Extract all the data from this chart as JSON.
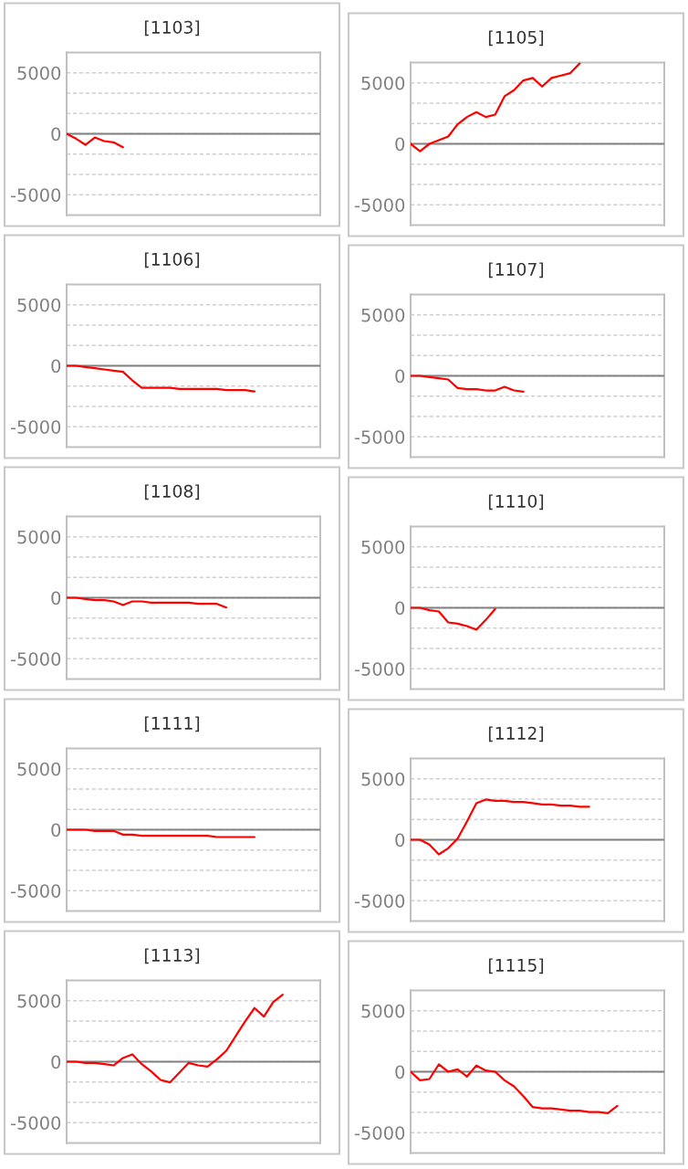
{
  "chart_data": [
    {
      "type": "line",
      "title": "[1103]",
      "categories": [
        null,
        null,
        null,
        null,
        null,
        null,
        null,
        null,
        null,
        null,
        null,
        null,
        null,
        null,
        null,
        null,
        null,
        null,
        null,
        null,
        null,
        null,
        null,
        null,
        null,
        null,
        null,
        null
      ],
      "values": [
        0,
        -400,
        -900,
        -300,
        -600,
        -700,
        -1100,
        null,
        null,
        null,
        null,
        null,
        null,
        null,
        null,
        null,
        null,
        null,
        null,
        null,
        null,
        null,
        null,
        null,
        null,
        null,
        null,
        null
      ],
      "color": "#ff0000",
      "ylim": [
        -6666.67,
        6666.67
      ],
      "yticks": [
        5000,
        {
          "value": 3333.33,
          "label": null
        },
        {
          "value": 1666.67,
          "label": null
        },
        0,
        {
          "value": -1666.67,
          "label": null
        },
        {
          "value": -3333.33,
          "label": null
        },
        -5000
      ],
      "grid": "y",
      "ref_lines": [
        {
          "axis": "y",
          "value": 0,
          "color": "#808080"
        }
      ],
      "tick_labels": "y"
    },
    {
      "type": "line",
      "title": "[1105]",
      "categories": [
        null,
        null,
        null,
        null,
        null,
        null,
        null,
        null,
        null,
        null,
        null,
        null,
        null,
        null,
        null,
        null,
        null,
        null,
        null,
        null,
        null,
        null,
        null,
        null,
        null,
        null,
        null,
        null
      ],
      "values": [
        0,
        -600,
        0,
        300,
        600,
        1600,
        2200,
        2600,
        2200,
        2400,
        3900,
        4400,
        5200,
        5400,
        4700,
        5400,
        5600,
        5800,
        6600,
        null,
        null,
        null,
        null,
        null,
        null,
        null,
        null,
        null
      ],
      "color": "#ff0000",
      "ylim": [
        -6666.67,
        6666.67
      ],
      "yticks": [
        5000,
        {
          "value": 3333.33,
          "label": null
        },
        {
          "value": 1666.67,
          "label": null
        },
        0,
        {
          "value": -1666.67,
          "label": null
        },
        {
          "value": -3333.33,
          "label": null
        },
        -5000
      ],
      "grid": "y",
      "ref_lines": [
        {
          "axis": "y",
          "value": 0,
          "color": "#808080"
        }
      ],
      "tick_labels": "y"
    },
    {
      "type": "line",
      "title": "[1106]",
      "categories": [
        null,
        null,
        null,
        null,
        null,
        null,
        null,
        null,
        null,
        null,
        null,
        null,
        null,
        null,
        null,
        null,
        null,
        null,
        null,
        null,
        null,
        null,
        null,
        null,
        null,
        null,
        null,
        null
      ],
      "values": [
        0,
        0,
        -100,
        -200,
        -300,
        -400,
        -500,
        -1200,
        -1800,
        -1800,
        -1800,
        -1800,
        -1900,
        -1900,
        -1900,
        -1900,
        -1900,
        -2000,
        -2000,
        -2000,
        -2100,
        null,
        null,
        null,
        null,
        null,
        null,
        null
      ],
      "color": "#ff0000",
      "ylim": [
        -6666.67,
        6666.67
      ],
      "yticks": [
        5000,
        {
          "value": 3333.33,
          "label": null
        },
        {
          "value": 1666.67,
          "label": null
        },
        0,
        {
          "value": -1666.67,
          "label": null
        },
        {
          "value": -3333.33,
          "label": null
        },
        -5000
      ],
      "grid": "y",
      "ref_lines": [
        {
          "axis": "y",
          "value": 0,
          "color": "#808080"
        }
      ],
      "tick_labels": "y"
    },
    {
      "type": "line",
      "title": "[1107]",
      "categories": [
        null,
        null,
        null,
        null,
        null,
        null,
        null,
        null,
        null,
        null,
        null,
        null,
        null,
        null,
        null,
        null,
        null,
        null,
        null,
        null,
        null,
        null,
        null,
        null,
        null,
        null,
        null,
        null
      ],
      "values": [
        0,
        0,
        -100,
        -200,
        -300,
        -1000,
        -1100,
        -1100,
        -1200,
        -1200,
        -900,
        -1200,
        -1300,
        null,
        null,
        null,
        null,
        null,
        null,
        null,
        null,
        null,
        null,
        null,
        null,
        null,
        null,
        null
      ],
      "color": "#ff0000",
      "ylim": [
        -6666.67,
        6666.67
      ],
      "yticks": [
        5000,
        {
          "value": 3333.33,
          "label": null
        },
        {
          "value": 1666.67,
          "label": null
        },
        0,
        {
          "value": -1666.67,
          "label": null
        },
        {
          "value": -3333.33,
          "label": null
        },
        -5000
      ],
      "grid": "y",
      "ref_lines": [
        {
          "axis": "y",
          "value": 0,
          "color": "#808080"
        }
      ],
      "tick_labels": "y"
    },
    {
      "type": "line",
      "title": "[1108]",
      "categories": [
        null,
        null,
        null,
        null,
        null,
        null,
        null,
        null,
        null,
        null,
        null,
        null,
        null,
        null,
        null,
        null,
        null,
        null,
        null,
        null,
        null,
        null,
        null,
        null,
        null,
        null,
        null,
        null
      ],
      "values": [
        0,
        0,
        -100,
        -200,
        -200,
        -300,
        -600,
        -300,
        -300,
        -400,
        -400,
        -400,
        -400,
        -400,
        -500,
        -500,
        -500,
        -800,
        null,
        null,
        null,
        null,
        null,
        null,
        null,
        null,
        null,
        null
      ],
      "color": "#ff0000",
      "ylim": [
        -6666.67,
        6666.67
      ],
      "yticks": [
        5000,
        {
          "value": 3333.33,
          "label": null
        },
        {
          "value": 1666.67,
          "label": null
        },
        0,
        {
          "value": -1666.67,
          "label": null
        },
        {
          "value": -3333.33,
          "label": null
        },
        -5000
      ],
      "grid": "y",
      "ref_lines": [
        {
          "axis": "y",
          "value": 0,
          "color": "#808080"
        }
      ],
      "tick_labels": "y"
    },
    {
      "type": "line",
      "title": "[1110]",
      "categories": [
        null,
        null,
        null,
        null,
        null,
        null,
        null,
        null,
        null,
        null,
        null,
        null,
        null,
        null,
        null,
        null,
        null,
        null,
        null,
        null,
        null,
        null,
        null,
        null,
        null,
        null,
        null,
        null
      ],
      "values": [
        0,
        0,
        -200,
        -300,
        -1200,
        -1300,
        -1500,
        -1800,
        -1000,
        -100,
        null,
        null,
        null,
        null,
        null,
        null,
        null,
        null,
        null,
        null,
        null,
        null,
        null,
        null,
        null,
        null,
        null,
        null
      ],
      "color": "#ff0000",
      "ylim": [
        -6666.67,
        6666.67
      ],
      "yticks": [
        5000,
        {
          "value": 3333.33,
          "label": null
        },
        {
          "value": 1666.67,
          "label": null
        },
        0,
        {
          "value": -1666.67,
          "label": null
        },
        {
          "value": -3333.33,
          "label": null
        },
        -5000
      ],
      "grid": "y",
      "ref_lines": [
        {
          "axis": "y",
          "value": 0,
          "color": "#808080"
        }
      ],
      "tick_labels": "y"
    },
    {
      "type": "line",
      "title": "[1111]",
      "categories": [
        null,
        null,
        null,
        null,
        null,
        null,
        null,
        null,
        null,
        null,
        null,
        null,
        null,
        null,
        null,
        null,
        null,
        null,
        null,
        null,
        null,
        null,
        null,
        null,
        null,
        null,
        null,
        null
      ],
      "values": [
        0,
        0,
        0,
        -100,
        -100,
        -100,
        -400,
        -400,
        -500,
        -500,
        -500,
        -500,
        -500,
        -500,
        -500,
        -500,
        -600,
        -600,
        -600,
        -600,
        -600,
        null,
        null,
        null,
        null,
        null,
        null,
        null
      ],
      "color": "#ff0000",
      "ylim": [
        -6666.67,
        6666.67
      ],
      "yticks": [
        5000,
        {
          "value": 3333.33,
          "label": null
        },
        {
          "value": 1666.67,
          "label": null
        },
        0,
        {
          "value": -1666.67,
          "label": null
        },
        {
          "value": -3333.33,
          "label": null
        },
        -5000
      ],
      "grid": "y",
      "ref_lines": [
        {
          "axis": "y",
          "value": 0,
          "color": "#808080"
        }
      ],
      "tick_labels": "y"
    },
    {
      "type": "line",
      "title": "[1112]",
      "categories": [
        null,
        null,
        null,
        null,
        null,
        null,
        null,
        null,
        null,
        null,
        null,
        null,
        null,
        null,
        null,
        null,
        null,
        null,
        null,
        null,
        null,
        null,
        null,
        null,
        null,
        null,
        null,
        null
      ],
      "values": [
        0,
        0,
        -400,
        -1200,
        -700,
        100,
        1500,
        3000,
        3300,
        3200,
        3200,
        3100,
        3100,
        3000,
        2900,
        2900,
        2800,
        2800,
        2700,
        2700,
        null,
        null,
        null,
        null,
        null,
        null,
        null,
        null
      ],
      "color": "#ff0000",
      "ylim": [
        -6666.67,
        6666.67
      ],
      "yticks": [
        5000,
        {
          "value": 3333.33,
          "label": null
        },
        {
          "value": 1666.67,
          "label": null
        },
        0,
        {
          "value": -1666.67,
          "label": null
        },
        {
          "value": -3333.33,
          "label": null
        },
        -5000
      ],
      "grid": "y",
      "ref_lines": [
        {
          "axis": "y",
          "value": 0,
          "color": "#808080"
        }
      ],
      "tick_labels": "y"
    },
    {
      "type": "line",
      "title": "[1113]",
      "categories": [
        null,
        null,
        null,
        null,
        null,
        null,
        null,
        null,
        null,
        null,
        null,
        null,
        null,
        null,
        null,
        null,
        null,
        null,
        null,
        null,
        null,
        null,
        null,
        null,
        null,
        null,
        null,
        null
      ],
      "values": [
        0,
        0,
        -100,
        -100,
        -200,
        -300,
        300,
        600,
        -200,
        -800,
        -1500,
        -1700,
        -900,
        -100,
        -300,
        -400,
        200,
        900,
        2100,
        3300,
        4400,
        3700,
        4900,
        5500,
        null,
        null,
        null,
        null
      ],
      "color": "#ff0000",
      "ylim": [
        -6666.67,
        6666.67
      ],
      "yticks": [
        5000,
        {
          "value": 3333.33,
          "label": null
        },
        {
          "value": 1666.67,
          "label": null
        },
        0,
        {
          "value": -1666.67,
          "label": null
        },
        {
          "value": -3333.33,
          "label": null
        },
        -5000
      ],
      "grid": "y",
      "ref_lines": [
        {
          "axis": "y",
          "value": 0,
          "color": "#808080"
        }
      ],
      "tick_labels": "y"
    },
    {
      "type": "line",
      "title": "[1115]",
      "categories": [
        null,
        null,
        null,
        null,
        null,
        null,
        null,
        null,
        null,
        null,
        null,
        null,
        null,
        null,
        null,
        null,
        null,
        null,
        null,
        null,
        null,
        null,
        null,
        null,
        null,
        null,
        null,
        null
      ],
      "values": [
        0,
        -700,
        -600,
        600,
        0,
        200,
        -400,
        500,
        100,
        0,
        -700,
        -1200,
        -2000,
        -2900,
        -3000,
        -3000,
        -3100,
        -3200,
        -3200,
        -3300,
        -3300,
        -3400,
        -2800,
        null,
        null,
        null,
        null,
        null
      ],
      "color": "#ff0000",
      "ylim": [
        -6666.67,
        6666.67
      ],
      "yticks": [
        5000,
        {
          "value": 3333.33,
          "label": null
        },
        {
          "value": 1666.67,
          "label": null
        },
        0,
        {
          "value": -1666.67,
          "label": null
        },
        {
          "value": -3333.33,
          "label": null
        },
        -5000
      ],
      "grid": "y",
      "ref_lines": [
        {
          "axis": "y",
          "value": 0,
          "color": "#808080"
        }
      ],
      "tick_labels": "y"
    }
  ]
}
